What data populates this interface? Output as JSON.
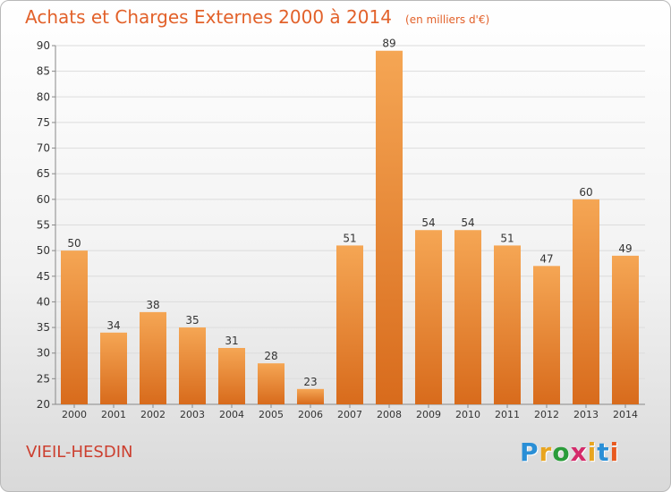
{
  "title": "Achats et Charges Externes 2000 à 2014",
  "subtitle": "(en milliers d'€)",
  "location": "VIEIL-HESDIN",
  "logo": {
    "letters": [
      "P",
      "r",
      "o",
      "x",
      "i",
      "t",
      "i"
    ],
    "colors": [
      "#2a8fd6",
      "#e8a520",
      "#2a9c3a",
      "#d42a6a",
      "#e8a520",
      "#2a8fd6",
      "#e85a20"
    ]
  },
  "colors": {
    "title": "#e2612a",
    "bar_light": "#f5a654",
    "bar_dark": "#d86b1c",
    "location": "#cc3f2f"
  },
  "chart_data": {
    "type": "bar",
    "categories": [
      "2000",
      "2001",
      "2002",
      "2003",
      "2004",
      "2005",
      "2006",
      "2007",
      "2008",
      "2009",
      "2010",
      "2011",
      "2012",
      "2013",
      "2014"
    ],
    "values": [
      50,
      34,
      38,
      35,
      31,
      28,
      23,
      51,
      89,
      54,
      54,
      51,
      47,
      60,
      49
    ],
    "ylim": [
      20,
      90
    ],
    "yticks": [
      20,
      25,
      30,
      35,
      40,
      45,
      50,
      55,
      60,
      65,
      70,
      75,
      80,
      85,
      90
    ],
    "grid": true,
    "data_labels": true
  }
}
